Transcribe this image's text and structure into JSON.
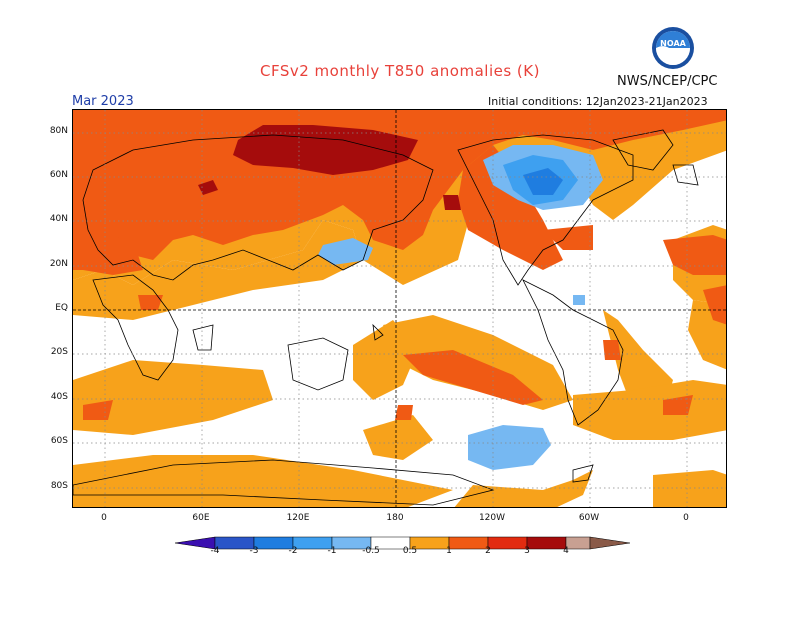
{
  "header": {
    "title": "CFSv2 monthly T850 anomalies (K)",
    "agency": "NWS/NCEP/CPC",
    "month": "Mar 2023",
    "initial_conditions": "Initial conditions: 12Jan2023-21Jan2023",
    "logo_text": "NOAA"
  },
  "axes": {
    "lat_labels": [
      "80N",
      "60N",
      "40N",
      "20N",
      "EQ",
      "20S",
      "40S",
      "60S",
      "80S"
    ],
    "lon_labels": [
      "0",
      "60E",
      "120E",
      "180",
      "120W",
      "60W",
      "0"
    ]
  },
  "colorbar": {
    "labels": [
      "-4",
      "-3",
      "-2",
      "-1",
      "-0.5",
      "0.5",
      "1",
      "2",
      "3",
      "4"
    ],
    "colors": [
      "#3a0fb0",
      "#2a55c8",
      "#1f7de0",
      "#3ea0f0",
      "#76b8f2",
      "#ffffff",
      "#f7a21b",
      "#f05a14",
      "#e22b10",
      "#a50c0c",
      "#c8a092",
      "#8a5a48"
    ]
  },
  "anomaly_colors": {
    "warm_05": "#f7a21b",
    "warm_1": "#f05a14",
    "warm_2": "#e22b10",
    "warm_3": "#a50c0c",
    "cool_05": "#76b8f2",
    "cool_1": "#3ea0f0",
    "cool_2": "#1f7de0"
  }
}
